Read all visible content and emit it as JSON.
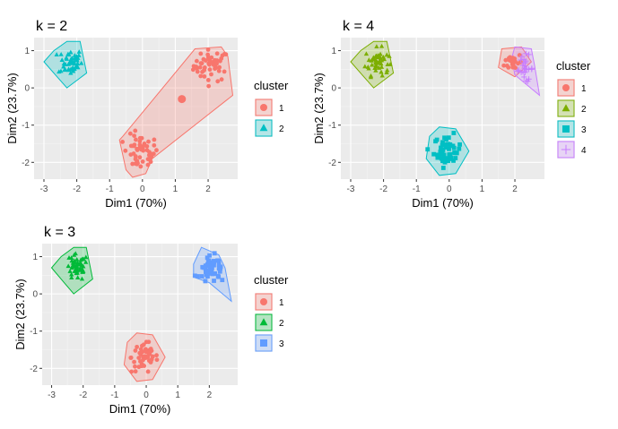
{
  "chart_data": [
    {
      "type": "scatter",
      "title": "k = 2",
      "xlabel": "Dim1 (70%)",
      "ylabel": "Dim2 (23.7%)",
      "xlim": [
        -3.3,
        2.9
      ],
      "ylim": [
        -2.45,
        1.35
      ],
      "xticks": [
        -3,
        -2,
        -1,
        0,
        1,
        2
      ],
      "yticks": [
        -2,
        -1,
        0,
        1
      ],
      "legend_title": "cluster",
      "legend_position": "right",
      "grid": true,
      "series": [
        {
          "name": "1",
          "color": "#F8766D",
          "shape": "circle",
          "centroid": [
            1.2,
            -0.3
          ],
          "hull": [
            [
              1.6,
              1.05
            ],
            [
              2.4,
              1.1
            ],
            [
              2.6,
              0.85
            ],
            [
              2.75,
              -0.2
            ],
            [
              0.3,
              -1.9
            ],
            [
              0.1,
              -2.3
            ],
            [
              -0.3,
              -2.4
            ],
            [
              -0.5,
              -2.2
            ],
            [
              -0.7,
              -1.4
            ],
            [
              -0.6,
              -1.3
            ]
          ],
          "clouds": [
            {
              "center": [
                2.1,
                0.6
              ],
              "spread": [
                0.45,
                0.35
              ],
              "n": 50
            },
            {
              "center": [
                -0.05,
                -1.75
              ],
              "spread": [
                0.45,
                0.4
              ],
              "n": 50
            }
          ]
        },
        {
          "name": "2",
          "color": "#00BFC4",
          "shape": "triangle",
          "hull": [
            [
              -2.3,
              1.25
            ],
            [
              -1.9,
              1.25
            ],
            [
              -1.7,
              0.4
            ],
            [
              -2.3,
              0.0
            ],
            [
              -2.6,
              0.3
            ],
            [
              -3.0,
              0.7
            ],
            [
              -2.7,
              1.0
            ]
          ],
          "clouds": [
            {
              "center": [
                -2.2,
                0.7
              ],
              "spread": [
                0.3,
                0.3
              ],
              "n": 50
            }
          ]
        }
      ]
    },
    {
      "type": "scatter",
      "title": "k = 4",
      "xlabel": "Dim1 (70%)",
      "ylabel": "Dim2 (23.7%)",
      "xlim": [
        -3.3,
        2.9
      ],
      "ylim": [
        -2.45,
        1.35
      ],
      "xticks": [
        -3,
        -2,
        -1,
        0,
        1,
        2
      ],
      "yticks": [
        -2,
        -1,
        0,
        1
      ],
      "legend_title": "cluster",
      "legend_position": "right",
      "grid": true,
      "series": [
        {
          "name": "1",
          "color": "#F8766D",
          "shape": "circle",
          "hull": [
            [
              1.6,
              1.05
            ],
            [
              2.2,
              1.1
            ],
            [
              2.5,
              0.7
            ],
            [
              2.0,
              0.3
            ],
            [
              1.5,
              0.55
            ]
          ],
          "clouds": [
            {
              "center": [
                1.95,
                0.7
              ],
              "spread": [
                0.22,
                0.2
              ],
              "n": 25
            }
          ]
        },
        {
          "name": "2",
          "color": "#7CAE00",
          "shape": "triangle",
          "hull": [
            [
              -2.3,
              1.25
            ],
            [
              -1.9,
              1.25
            ],
            [
              -1.7,
              0.4
            ],
            [
              -2.3,
              0.0
            ],
            [
              -2.6,
              0.3
            ],
            [
              -3.0,
              0.7
            ],
            [
              -2.7,
              1.0
            ]
          ],
          "clouds": [
            {
              "center": [
                -2.2,
                0.7
              ],
              "spread": [
                0.3,
                0.3
              ],
              "n": 50
            }
          ]
        },
        {
          "name": "3",
          "color": "#00BFC4",
          "shape": "square",
          "hull": [
            [
              -0.3,
              -1.05
            ],
            [
              0.2,
              -1.1
            ],
            [
              0.6,
              -1.7
            ],
            [
              0.2,
              -2.3
            ],
            [
              -0.3,
              -2.35
            ],
            [
              -0.7,
              -1.9
            ],
            [
              -0.6,
              -1.3
            ]
          ],
          "clouds": [
            {
              "center": [
                -0.05,
                -1.7
              ],
              "spread": [
                0.35,
                0.35
              ],
              "n": 50
            }
          ]
        },
        {
          "name": "4",
          "color": "#C77CFF",
          "shape": "cross",
          "hull": [
            [
              2.0,
              1.1
            ],
            [
              2.5,
              1.05
            ],
            [
              2.6,
              0.6
            ],
            [
              2.75,
              -0.2
            ],
            [
              2.0,
              0.35
            ],
            [
              1.9,
              0.8
            ]
          ],
          "clouds": [
            {
              "center": [
                2.3,
                0.5
              ],
              "spread": [
                0.22,
                0.3
              ],
              "n": 25
            }
          ]
        }
      ]
    },
    {
      "type": "scatter",
      "title": "k = 3",
      "xlabel": "Dim1 (70%)",
      "ylabel": "Dim2 (23.7%)",
      "xlim": [
        -3.3,
        2.9
      ],
      "ylim": [
        -2.45,
        1.35
      ],
      "xticks": [
        -3,
        -2,
        -1,
        0,
        1,
        2
      ],
      "yticks": [
        -2,
        -1,
        0,
        1
      ],
      "legend_title": "cluster",
      "legend_position": "right",
      "grid": true,
      "series": [
        {
          "name": "1",
          "color": "#F8766D",
          "shape": "circle",
          "hull": [
            [
              -0.3,
              -1.05
            ],
            [
              0.2,
              -1.1
            ],
            [
              0.6,
              -1.7
            ],
            [
              0.2,
              -2.3
            ],
            [
              -0.3,
              -2.35
            ],
            [
              -0.7,
              -1.9
            ],
            [
              -0.6,
              -1.3
            ]
          ],
          "clouds": [
            {
              "center": [
                -0.05,
                -1.7
              ],
              "spread": [
                0.35,
                0.35
              ],
              "n": 50
            }
          ]
        },
        {
          "name": "2",
          "color": "#00BA38",
          "shape": "triangle",
          "hull": [
            [
              -2.3,
              1.25
            ],
            [
              -1.9,
              1.25
            ],
            [
              -1.7,
              0.4
            ],
            [
              -2.3,
              0.0
            ],
            [
              -2.6,
              0.3
            ],
            [
              -3.0,
              0.7
            ],
            [
              -2.7,
              1.0
            ]
          ],
          "clouds": [
            {
              "center": [
                -2.2,
                0.7
              ],
              "spread": [
                0.3,
                0.3
              ],
              "n": 50
            }
          ]
        },
        {
          "name": "3",
          "color": "#619CFF",
          "shape": "square",
          "hull": [
            [
              1.75,
              1.25
            ],
            [
              2.3,
              1.05
            ],
            [
              2.5,
              0.7
            ],
            [
              2.7,
              -0.2
            ],
            [
              2.0,
              0.3
            ],
            [
              1.5,
              0.45
            ],
            [
              1.5,
              0.8
            ]
          ],
          "clouds": [
            {
              "center": [
                2.1,
                0.65
              ],
              "spread": [
                0.35,
                0.3
              ],
              "n": 50
            }
          ]
        }
      ]
    }
  ]
}
